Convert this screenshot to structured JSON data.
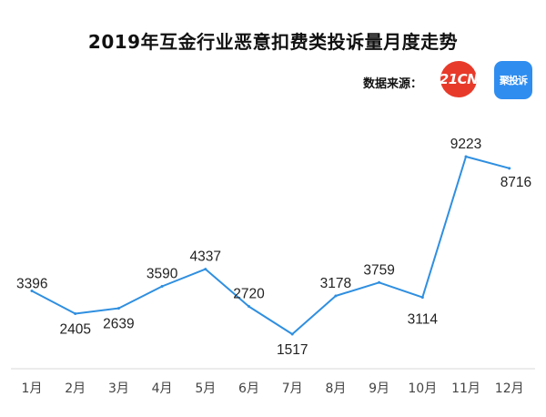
{
  "title": "2019年互金行业恶意扣费类投诉量月度走势",
  "source_label": "数据来源：",
  "logos": {
    "left": {
      "text": "21CN",
      "color": "#e83a2a"
    },
    "right": {
      "text": "聚投诉",
      "color": "#2f8df0"
    }
  },
  "colors": {
    "line": "#2f8fe0",
    "axis": "#d8d8d8"
  },
  "chart_data": {
    "type": "line",
    "title": "2019年互金行业恶意扣费类投诉量月度走势",
    "categories": [
      "1月",
      "2月",
      "3月",
      "4月",
      "5月",
      "6月",
      "7月",
      "8月",
      "9月",
      "10月",
      "11月",
      "12月"
    ],
    "series": [
      {
        "values": [
          3396,
          2405,
          2639,
          3590,
          4337,
          2720,
          1517,
          3178,
          3759,
          3114,
          9223,
          8716
        ]
      }
    ],
    "xlabel": "",
    "ylabel": "",
    "grid": false,
    "data_labels": true
  }
}
